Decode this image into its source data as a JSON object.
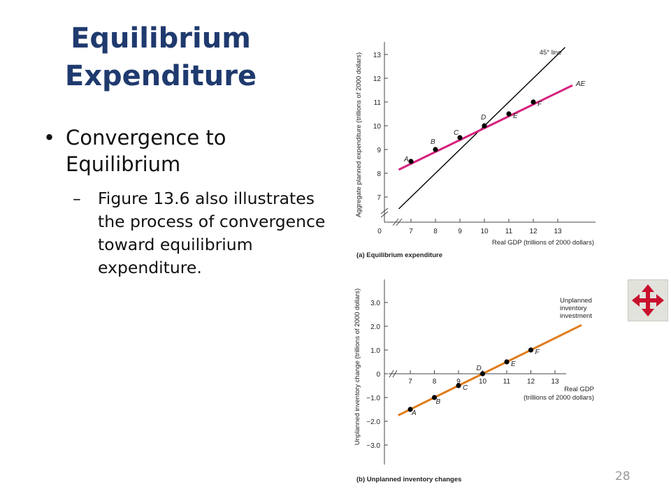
{
  "slide": {
    "title_line1": "Equilibrium",
    "title_line2": "Expenditure",
    "bullet_marker": "•",
    "bullet": "Convergence to Equilibrium",
    "sub_marker": "–",
    "sub_bullet": "Figure 13.6 also illustrates the process of convergence toward equilibrium expenditure.",
    "page_number": "28"
  },
  "nav_icon": {
    "name": "four-way-arrow-icon",
    "color": "#c8102e"
  },
  "chart_data": [
    {
      "type": "line",
      "caption": "(a) Equilibrium expenditure",
      "xlabel": "Real GDP (trillions of 2000 dollars)",
      "ylabel": "Aggregate planned expenditure (trillions of 2000 dollars)",
      "xticks": [
        "0",
        "7",
        "8",
        "9",
        "10",
        "11",
        "12",
        "13"
      ],
      "yticks": [
        "7",
        "8",
        "9",
        "10",
        "11",
        "12",
        "13"
      ],
      "axis_break": true,
      "grid": false,
      "series": [
        {
          "name": "45° line",
          "color": "#000000",
          "x": [
            6.5,
            13.3
          ],
          "y": [
            6.5,
            13.3
          ]
        },
        {
          "name": "AE",
          "color": "#d6217e",
          "x": [
            6.5,
            13.6
          ],
          "y": [
            8.15,
            11.7
          ]
        }
      ],
      "points": [
        {
          "label": "A",
          "x": 7,
          "y": 8.5
        },
        {
          "label": "B",
          "x": 8,
          "y": 9
        },
        {
          "label": "C",
          "x": 9,
          "y": 9.5
        },
        {
          "label": "D",
          "x": 10,
          "y": 10
        },
        {
          "label": "E",
          "x": 11,
          "y": 10.5
        },
        {
          "label": "F",
          "x": 12,
          "y": 11
        }
      ]
    },
    {
      "type": "line",
      "caption": "(b) Unplanned inventory changes",
      "xlabel": "Real GDP (trillions of 2000 dollars)",
      "ylabel": "Unplanned inventory change (trillions of 2000 dollars)",
      "xticks": [
        "7",
        "8",
        "9",
        "10",
        "11",
        "12",
        "13"
      ],
      "yticks": [
        "3.0",
        "2.0",
        "1.0",
        "0",
        "−1.0",
        "−2.0",
        "−3.0"
      ],
      "axis_break": true,
      "grid": false,
      "series": [
        {
          "name": "Unplanned inventory investment",
          "color": "#e07c1c",
          "x": [
            6.5,
            14.1
          ],
          "y": [
            -1.75,
            2.05
          ]
        }
      ],
      "points": [
        {
          "label": "A",
          "x": 7,
          "y": -1.5
        },
        {
          "label": "B",
          "x": 8,
          "y": -1.0
        },
        {
          "label": "C",
          "x": 9,
          "y": -0.5
        },
        {
          "label": "D",
          "x": 10,
          "y": 0
        },
        {
          "label": "E",
          "x": 11,
          "y": 0.5
        },
        {
          "label": "F",
          "x": 12,
          "y": 1.0
        }
      ]
    }
  ]
}
